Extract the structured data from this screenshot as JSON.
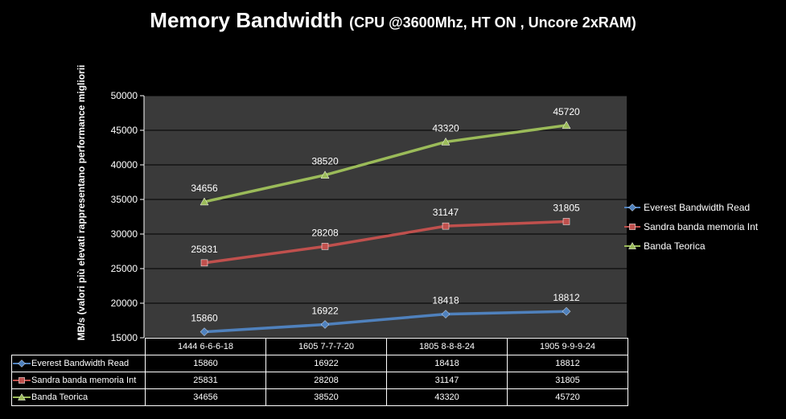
{
  "title": {
    "main": "Memory Bandwidth",
    "sub": "(CPU @3600Mhz, HT ON , Uncore 2xRAM)"
  },
  "chart_data": {
    "type": "line",
    "title": "Memory Bandwidth (CPU @3600Mhz, HT ON , Uncore 2xRAM)",
    "xlabel": "",
    "ylabel": "MB/s (valori più elevati rappresentano performance migliorii",
    "categories": [
      "1444 6-6-6-18",
      "1605 7-7-7-20",
      "1805 8-8-8-24",
      "1905 9-9-9-24"
    ],
    "ylim": [
      15000,
      50000
    ],
    "yticks": [
      "15000",
      "20000",
      "25000",
      "30000",
      "35000",
      "40000",
      "45000",
      "50000"
    ],
    "grid": true,
    "legend_position": "right",
    "plot_background": "#3a3a3a",
    "series": [
      {
        "name": "Everest Bandwidth Read",
        "values": [
          15860,
          16922,
          18418,
          18812
        ],
        "labels": [
          "15860",
          "16922",
          "18418",
          "18812"
        ],
        "color": "#4f81bd",
        "marker": "diamond"
      },
      {
        "name": "Sandra banda memoria Int",
        "values": [
          25831,
          28208,
          31147,
          31805
        ],
        "labels": [
          "25831",
          "28208",
          "31147",
          "31805"
        ],
        "color": "#c0504d",
        "marker": "square"
      },
      {
        "name": "Banda Teorica",
        "values": [
          34656,
          38520,
          43320,
          45720
        ],
        "labels": [
          "34656",
          "38520",
          "43320",
          "45720"
        ],
        "color": "#9bbb59",
        "marker": "triangle"
      }
    ]
  }
}
